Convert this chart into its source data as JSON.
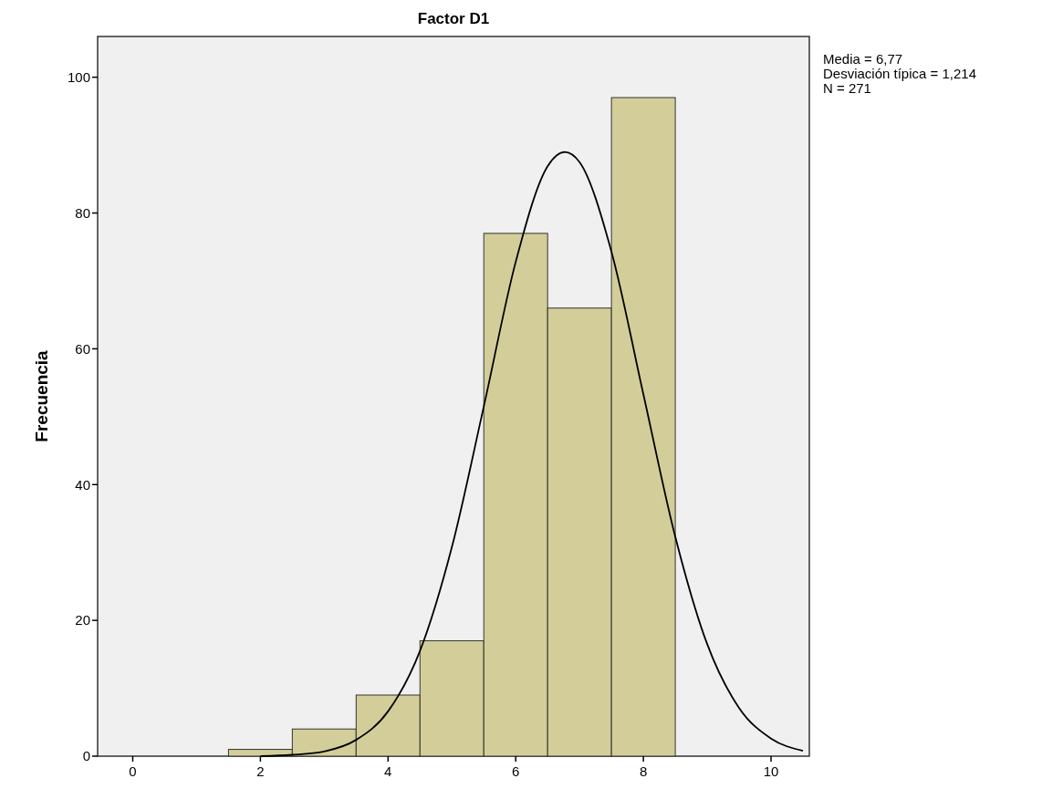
{
  "chart_data": {
    "type": "histogram",
    "title": "Factor D1",
    "ylabel": "Frecuencia",
    "bins": [
      1.5,
      2.5,
      3.5,
      4.5,
      5.5,
      6.5,
      7.5,
      8.5
    ],
    "values": [
      1,
      4,
      9,
      17,
      77,
      66,
      97
    ],
    "color": "#d3ce99",
    "series": [
      {
        "type": "line",
        "color": "#000000",
        "x": [
          2,
          2.5,
          3,
          3.5,
          4,
          4.5,
          5,
          5.5,
          6,
          6.5,
          6.77,
          7,
          7.5,
          8,
          8.5,
          9,
          9.5,
          10,
          10.5
        ],
        "values": [
          0,
          0.2,
          0.7,
          2.4,
          6.6,
          15.5,
          30.8,
          51.5,
          72.8,
          86.9,
          89,
          87.5,
          74.3,
          53.3,
          32.3,
          16.5,
          7.1,
          2.6,
          0.8
        ]
      }
    ],
    "xlim": [
      -0.55,
      10.6
    ],
    "xticks": [
      0,
      2,
      4,
      6,
      8,
      10
    ],
    "ylim": [
      0,
      106
    ],
    "yticks": [
      0,
      20,
      40,
      60,
      80,
      100
    ],
    "annotations": [
      "Media = 6,77",
      "Desviación típica = 1,214",
      "N = 271"
    ]
  }
}
